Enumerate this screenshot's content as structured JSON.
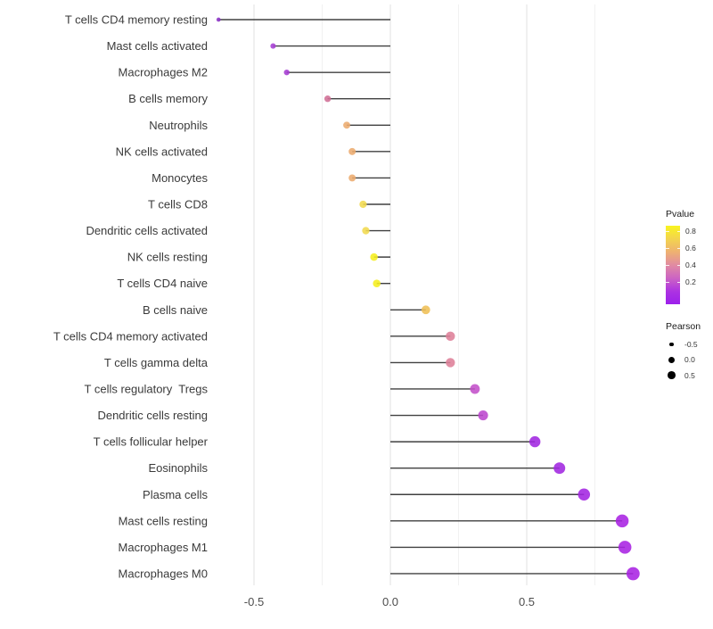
{
  "chart_data": {
    "type": "lollipop",
    "title": "",
    "xlabel": "",
    "ylabel": "",
    "xlim": [
      -0.72,
      0.97
    ],
    "x_ticks": [
      {
        "value": -0.5,
        "label": "-0.5"
      },
      {
        "value": 0.0,
        "label": "0.0"
      },
      {
        "value": 0.5,
        "label": "0.5"
      }
    ],
    "x_minor_gridlines": [
      -0.25,
      0.25,
      0.75
    ],
    "grid": "vertical-only",
    "legend_position": "right",
    "points": [
      {
        "label": "T cells CD4 memory resting",
        "pearson": -0.63,
        "pvalue": 0.06,
        "color": "#8C33C6"
      },
      {
        "label": "Mast cells activated",
        "pearson": -0.43,
        "pvalue": 0.08,
        "color": "#A63FD4"
      },
      {
        "label": "Macrophages M2",
        "pearson": -0.38,
        "pvalue": 0.08,
        "color": "#A53BD2"
      },
      {
        "label": "B cells memory",
        "pearson": -0.23,
        "pvalue": 0.32,
        "color": "#D06E95"
      },
      {
        "label": "Neutrophils",
        "pearson": -0.16,
        "pvalue": 0.5,
        "color": "#ECAB6E"
      },
      {
        "label": "NK cells activated",
        "pearson": -0.14,
        "pvalue": 0.5,
        "color": "#ECAB6E"
      },
      {
        "label": "Monocytes",
        "pearson": -0.14,
        "pvalue": 0.5,
        "color": "#ECAB6E"
      },
      {
        "label": "T cells CD8",
        "pearson": -0.1,
        "pvalue": 0.7,
        "color": "#F1D94F"
      },
      {
        "label": "Dendritic cells activated",
        "pearson": -0.09,
        "pvalue": 0.7,
        "color": "#F1D94F"
      },
      {
        "label": "NK cells resting",
        "pearson": -0.06,
        "pvalue": 0.84,
        "color": "#F5EE1E"
      },
      {
        "label": "T cells CD4 naive",
        "pearson": -0.05,
        "pvalue": 0.84,
        "color": "#F5EE1E"
      },
      {
        "label": "B cells naive",
        "pearson": 0.13,
        "pvalue": 0.6,
        "color": "#EFBF55"
      },
      {
        "label": "T cells CD4 memory activated",
        "pearson": 0.22,
        "pvalue": 0.34,
        "color": "#DE8098"
      },
      {
        "label": "T cells gamma delta",
        "pearson": 0.22,
        "pvalue": 0.34,
        "color": "#DE8098"
      },
      {
        "label": "T cells regulatory  Tregs",
        "pearson": 0.31,
        "pvalue": 0.2,
        "color": "#C350CA"
      },
      {
        "label": "Dendritic cells resting",
        "pearson": 0.34,
        "pvalue": 0.18,
        "color": "#BC45CE"
      },
      {
        "label": "T cells follicular helper",
        "pearson": 0.53,
        "pvalue": 0.03,
        "color": "#A027E0"
      },
      {
        "label": "Eosinophils",
        "pearson": 0.62,
        "pvalue": 0.03,
        "color": "#A027E0"
      },
      {
        "label": "Plasma cells",
        "pearson": 0.71,
        "pvalue": 0.02,
        "color": "#A324E1"
      },
      {
        "label": "Mast cells resting",
        "pearson": 0.85,
        "pvalue": 0.01,
        "color": "#A822E2"
      },
      {
        "label": "Macrophages M1",
        "pearson": 0.86,
        "pvalue": 0.01,
        "color": "#A822E2"
      },
      {
        "label": "Macrophages M0",
        "pearson": 0.89,
        "pvalue": 0.01,
        "color": "#A822E2"
      }
    ],
    "legend": {
      "color": {
        "title": "Pvalue",
        "tick_labels": [
          "0.8",
          "0.6",
          "0.4",
          "0.2"
        ],
        "gradient_top_to_bottom": [
          "#F9F41F",
          "#F3D44E",
          "#EEB171",
          "#E18BA2",
          "#CC64C3",
          "#AD33E2",
          "#9C20EB"
        ]
      },
      "size": {
        "title": "Pearson",
        "items": [
          {
            "label": "-0.5",
            "diameter": 4.5
          },
          {
            "label": "0.0",
            "diameter": 7.0
          },
          {
            "label": "0.5",
            "diameter": 8.8
          }
        ]
      }
    }
  },
  "colors": {
    "segment": "#404040",
    "grid_major": "#E3E3E3",
    "grid_minor": "#F1F1F1",
    "axis_text": "#4D4D4D",
    "label_text": "#3a3a3a"
  }
}
